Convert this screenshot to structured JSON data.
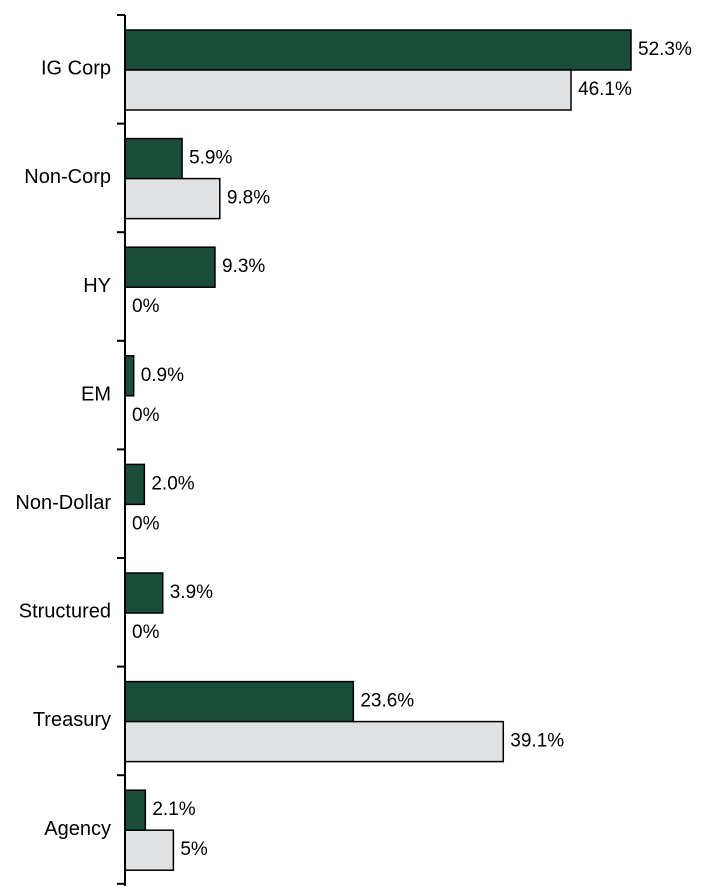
{
  "chart_data": {
    "type": "bar",
    "orientation": "horizontal",
    "categories": [
      "IG Corp",
      "Non-Corp",
      "HY",
      "EM",
      "Non-Dollar",
      "Structured",
      "Treasury",
      "Agency"
    ],
    "series": [
      {
        "values": [
          52.3,
          5.9,
          9.3,
          0.9,
          2.0,
          3.9,
          23.6,
          2.1
        ],
        "labels": [
          "52.3%",
          "5.9%",
          "9.3%",
          "0.9%",
          "2.0%",
          "3.9%",
          "23.6%",
          "2.1%"
        ],
        "color": "#1a4d3a"
      },
      {
        "values": [
          46.1,
          9.8,
          0,
          0,
          0,
          0,
          39.1,
          5
        ],
        "labels": [
          "46.1%",
          "9.8%",
          "0%",
          "0%",
          "0%",
          "0%",
          "39.1%",
          "5%"
        ],
        "color": "#dfe1e3"
      }
    ],
    "xlim": [
      0,
      56
    ],
    "grid": false,
    "legend": "none",
    "title": "",
    "xlabel": "",
    "ylabel": ""
  }
}
